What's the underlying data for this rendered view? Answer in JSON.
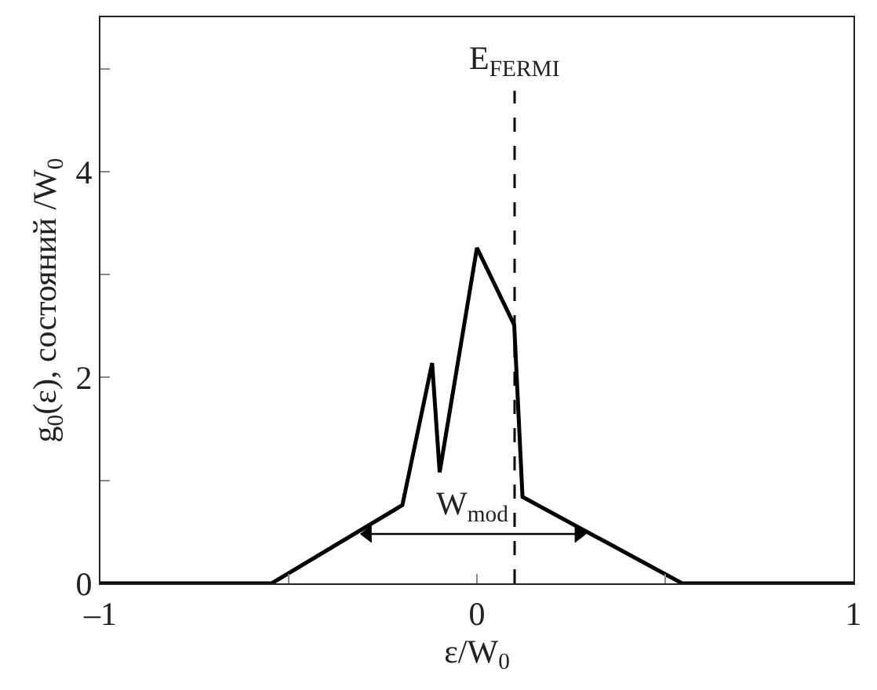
{
  "chart_data": {
    "type": "line",
    "x": [
      -1,
      -0.545,
      -0.198,
      -0.119,
      -0.099,
      0,
      0.099,
      0.121,
      0.545,
      1
    ],
    "series": [
      {
        "color": "#000000",
        "values": [
          0,
          0,
          0.76,
          2.14,
          1.08,
          3.26,
          2.51,
          0.84,
          0,
          0
        ]
      },
      {
        "color": "#000000",
        "x": [
          -0.29,
          0.27
        ],
        "values": [
          0.48,
          0.48
        ],
        "marker": "triangle"
      }
    ],
    "xlabel": "ε/W$_{0}$",
    "ylabel": "g$_{0}$(ε), состояний /W$_{0}$",
    "xlim": [
      -1,
      1
    ],
    "ylim": [
      0,
      5.5
    ],
    "xticks": [
      {
        "value": -1,
        "label": "–1"
      },
      {
        "value": -0.5,
        "label": null
      },
      0,
      {
        "value": 0.5,
        "label": null
      },
      1
    ],
    "yticks": [
      0,
      {
        "value": 1,
        "label": null
      },
      2,
      {
        "value": 3,
        "label": null
      },
      4,
      {
        "value": 5,
        "label": null
      }
    ],
    "ref_lines": [
      {
        "axis": "x",
        "value": 0.1,
        "label": "E$_{FERMI}$",
        "line_style": "dashed",
        "color": "#000000"
      }
    ],
    "annotations": [
      {
        "text": "W$_{mod}$",
        "x": -0.01,
        "y": 0.48
      }
    ],
    "marker": "none",
    "line_style": "solid"
  }
}
